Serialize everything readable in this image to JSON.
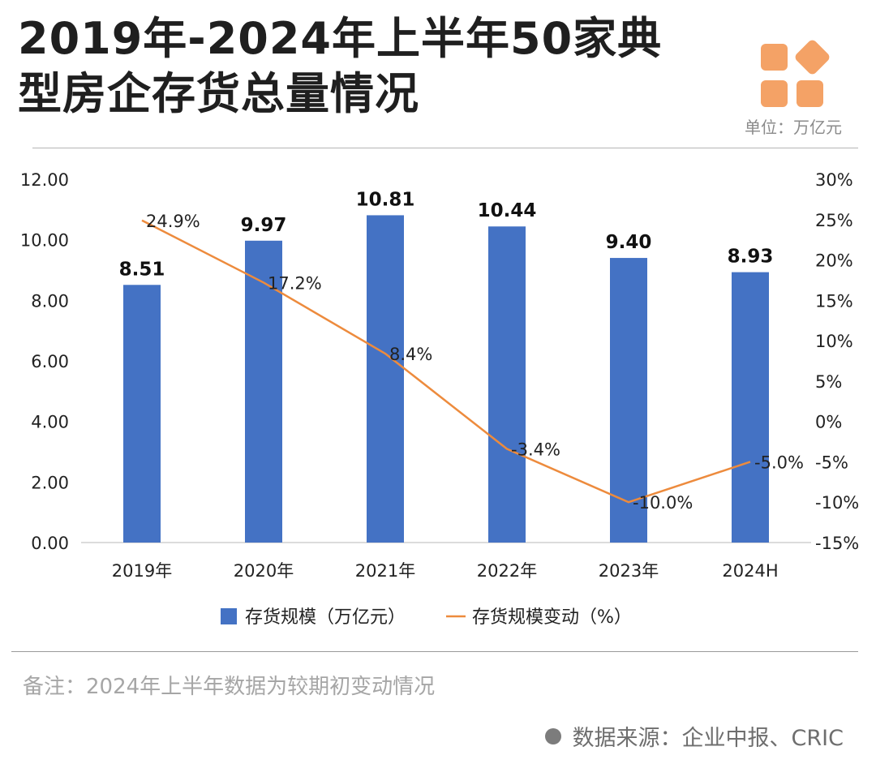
{
  "header": {
    "title_line1": "2019年-2024年上半年50家典",
    "title_line2": "型房企存货总量情况",
    "unit": "单位：万亿元"
  },
  "footer": {
    "note": "备注：2024年上半年数据为较期初变动情况",
    "source": "数据来源：企业中报、CRIC"
  },
  "colors": {
    "bar": "#4472c4",
    "line": "#ed8b3d",
    "logo": "#f4a266"
  },
  "icons": [
    "logo-squares-icon",
    "source-dot-icon"
  ],
  "chart_data": {
    "type": "bar",
    "categories": [
      "2019年",
      "2020年",
      "2021年",
      "2022年",
      "2023年",
      "2024H"
    ],
    "series": [
      {
        "name": "存货规模（万亿元）",
        "type": "bar",
        "axis": "left",
        "values": [
          8.51,
          9.97,
          10.81,
          10.44,
          9.4,
          8.93
        ],
        "labels": [
          "8.51",
          "9.97",
          "10.81",
          "10.44",
          "9.40",
          "8.93"
        ]
      },
      {
        "name": "存货规模变动（%）",
        "type": "line",
        "axis": "right",
        "values": [
          24.9,
          17.2,
          8.4,
          -3.4,
          -10.0,
          -5.0
        ],
        "labels": [
          "24.9%",
          "17.2%",
          "8.4%",
          "-3.4%",
          "-10.0%",
          "-5.0%"
        ]
      }
    ],
    "y_left": {
      "ylim": [
        0,
        12
      ],
      "ticks": [
        "0.00",
        "2.00",
        "4.00",
        "6.00",
        "8.00",
        "10.00",
        "12.00"
      ]
    },
    "y_right": {
      "ylim": [
        -15,
        30
      ],
      "ticks": [
        "-15%",
        "-10%",
        "-5%",
        "0%",
        "5%",
        "10%",
        "15%",
        "20%",
        "25%",
        "30%"
      ]
    },
    "legend_position": "bottom",
    "grid": false
  }
}
